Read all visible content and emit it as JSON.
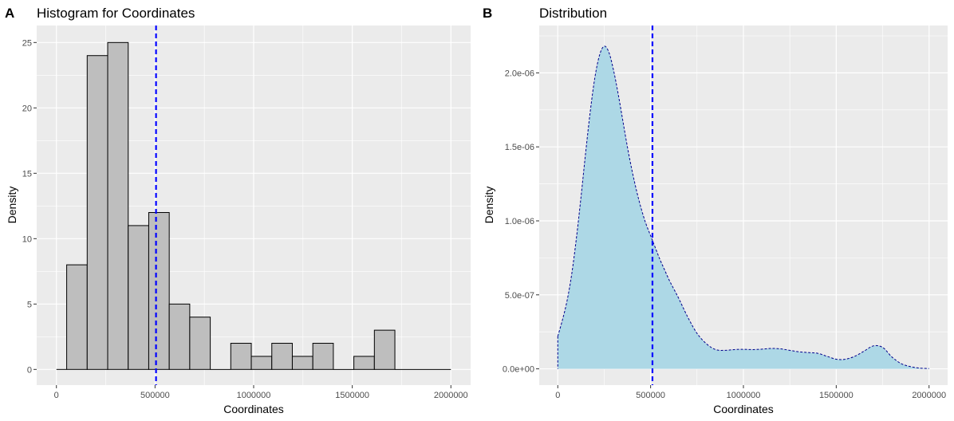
{
  "chart_data": [
    {
      "panel_tag": "A",
      "type": "histogram",
      "title": "Histogram for Coordinates",
      "xlabel": "Coordinates",
      "ylabel": "Density",
      "xlim": [
        -100000,
        2100000
      ],
      "ylim": [
        -1.2,
        26.3
      ],
      "x_ticks": [
        0,
        500000,
        1000000,
        1500000,
        2000000
      ],
      "x_tick_labels": [
        "0",
        "500000",
        "1000000",
        "1500000",
        "2000000"
      ],
      "y_ticks": [
        0,
        5,
        10,
        15,
        20,
        25
      ],
      "y_tick_labels": [
        "0",
        "5",
        "10",
        "15",
        "20",
        "25"
      ],
      "bin_width": 104000,
      "bins": [
        {
          "x0": 0,
          "x1": 52000,
          "count": 0
        },
        {
          "x0": 52000,
          "x1": 156000,
          "count": 8
        },
        {
          "x0": 156000,
          "x1": 260000,
          "count": 24
        },
        {
          "x0": 260000,
          "x1": 364000,
          "count": 25
        },
        {
          "x0": 364000,
          "x1": 468000,
          "count": 11
        },
        {
          "x0": 468000,
          "x1": 572000,
          "count": 12
        },
        {
          "x0": 572000,
          "x1": 676000,
          "count": 5
        },
        {
          "x0": 676000,
          "x1": 780000,
          "count": 4
        },
        {
          "x0": 780000,
          "x1": 884000,
          "count": 0
        },
        {
          "x0": 884000,
          "x1": 988000,
          "count": 2
        },
        {
          "x0": 988000,
          "x1": 1092000,
          "count": 1
        },
        {
          "x0": 1092000,
          "x1": 1196000,
          "count": 2
        },
        {
          "x0": 1196000,
          "x1": 1300000,
          "count": 1
        },
        {
          "x0": 1300000,
          "x1": 1404000,
          "count": 2
        },
        {
          "x0": 1404000,
          "x1": 1508000,
          "count": 0
        },
        {
          "x0": 1508000,
          "x1": 1612000,
          "count": 1
        },
        {
          "x0": 1612000,
          "x1": 1716000,
          "count": 3
        },
        {
          "x0": 1716000,
          "x1": 2000000,
          "count": 0
        }
      ],
      "vline": 505000,
      "bar_fill": "#bebebe",
      "bar_stroke": "#000000",
      "vline_color": "#0000ff",
      "panel_bg": "#ebebeb",
      "grid_color": "#ffffff"
    },
    {
      "panel_tag": "B",
      "type": "area",
      "title": "Distribution",
      "xlabel": "Coordinates",
      "ylabel": "Density",
      "xlim": [
        -100000,
        2100000
      ],
      "ylim": [
        -1.1e-07,
        2.32e-06
      ],
      "x_ticks": [
        0,
        500000,
        1000000,
        1500000,
        2000000
      ],
      "x_tick_labels": [
        "0",
        "500000",
        "1000000",
        "1500000",
        "2000000"
      ],
      "y_ticks": [
        0,
        5e-07,
        1e-06,
        1.5e-06,
        2e-06
      ],
      "y_tick_labels": [
        "0.0e+00",
        "5.0e-07",
        "1.0e-06",
        "1.5e-06",
        "2.0e-06"
      ],
      "x": [
        0,
        25000,
        50000,
        75000,
        100000,
        125000,
        150000,
        175000,
        200000,
        225000,
        250000,
        275000,
        300000,
        325000,
        350000,
        375000,
        400000,
        425000,
        450000,
        475000,
        500000,
        525000,
        550000,
        575000,
        600000,
        625000,
        650000,
        700000,
        750000,
        800000,
        850000,
        900000,
        950000,
        1000000,
        1050000,
        1100000,
        1150000,
        1200000,
        1250000,
        1300000,
        1350000,
        1400000,
        1450000,
        1500000,
        1550000,
        1600000,
        1650000,
        1700000,
        1750000,
        1800000,
        1850000,
        1900000,
        1950000,
        2000000
      ],
      "y": [
        2.2e-07,
        3.3e-07,
        4.6e-07,
        6.4e-07,
        8.8e-07,
        1.16e-06,
        1.46e-06,
        1.74e-06,
        1.97e-06,
        2.12e-06,
        2.18e-06,
        2.14e-06,
        2.02e-06,
        1.86e-06,
        1.68e-06,
        1.5e-06,
        1.34e-06,
        1.2e-06,
        1.08e-06,
        9.8e-07,
        9e-07,
        8.2e-07,
        7.4e-07,
        6.7e-07,
        6e-07,
        5.4e-07,
        4.8e-07,
        3.5e-07,
        2.4e-07,
        1.7e-07,
        1.3e-07,
        1.25e-07,
        1.3e-07,
        1.32e-07,
        1.3e-07,
        1.33e-07,
        1.38e-07,
        1.35e-07,
        1.25e-07,
        1.15e-07,
        1.1e-07,
        1.05e-07,
        8.5e-08,
        6.5e-08,
        6.5e-08,
        8.5e-08,
        1.2e-07,
        1.55e-07,
        1.45e-07,
        8e-08,
        3.5e-08,
        1.5e-08,
        5e-09,
        2e-09
      ],
      "vline": 510000,
      "area_fill": "#add8e6",
      "line_color": "#00008b",
      "vline_color": "#0000ff",
      "panel_bg": "#ebebeb",
      "grid_color": "#ffffff"
    }
  ]
}
